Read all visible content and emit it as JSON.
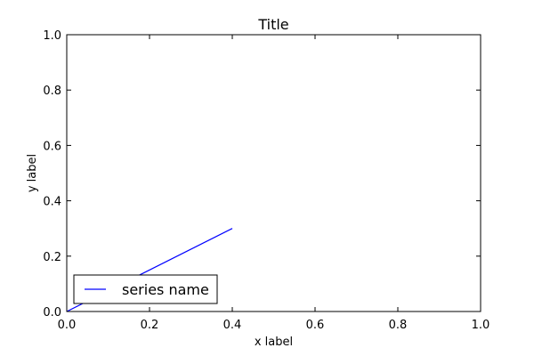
{
  "chart_data": {
    "type": "line",
    "title": "Title",
    "xlabel": "x label",
    "ylabel": "y label",
    "xlim": [
      0.0,
      1.0
    ],
    "ylim": [
      0.0,
      1.0
    ],
    "xticks": [
      "0.0",
      "0.2",
      "0.4",
      "0.6",
      "0.8",
      "1.0"
    ],
    "yticks": [
      "0.0",
      "0.2",
      "0.4",
      "0.6",
      "0.8",
      "1.0"
    ],
    "grid": false,
    "legend_position": "lower-left",
    "series": [
      {
        "name": "series name",
        "color": "#0000ff",
        "x": [
          0.0,
          0.4
        ],
        "y": [
          0.0,
          0.3
        ]
      }
    ]
  }
}
